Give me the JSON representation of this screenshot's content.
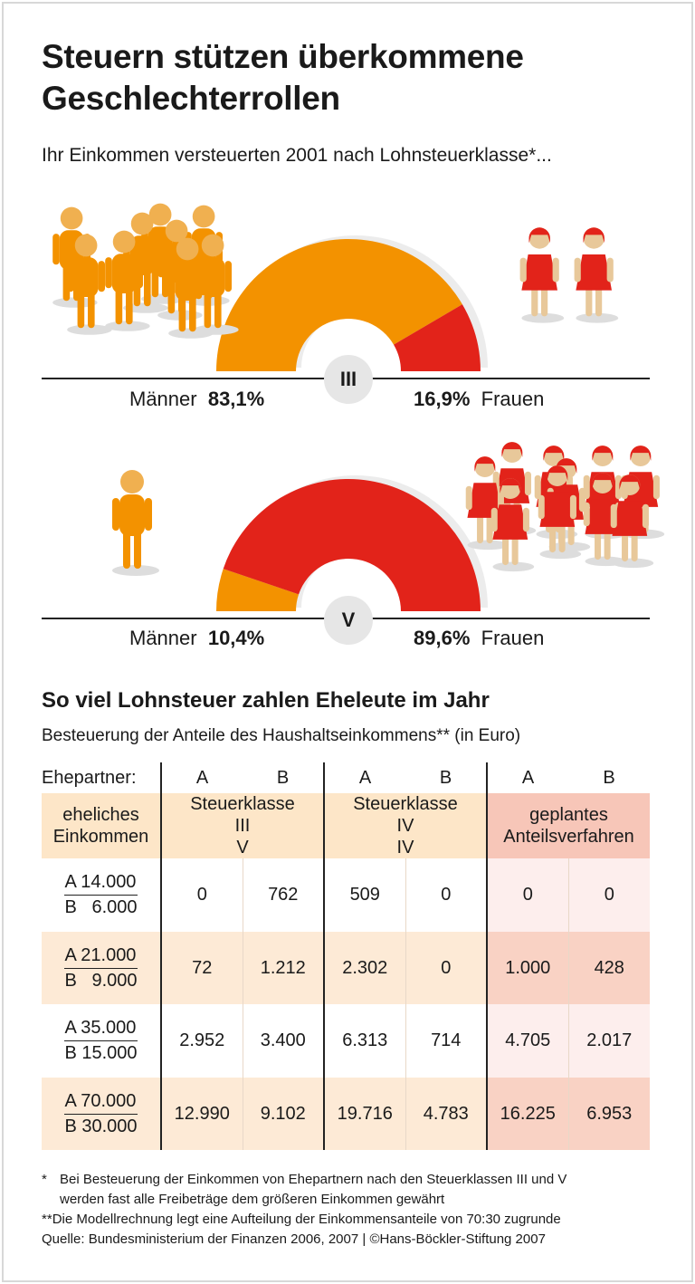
{
  "title": "Steuern stützen überkommene Geschlechterrollen",
  "subtitle": "Ihr Einkommen versteuerten 2001 nach Lohnsteuerklasse*...",
  "colors": {
    "men": "#f39200",
    "women": "#e2231a",
    "badge": "#e6e6e6",
    "peach": "#fde6c8",
    "pink": "#f7c6b8"
  },
  "chart_data": [
    {
      "type": "pie",
      "shape": "half-donut",
      "class_label": "III",
      "series": [
        {
          "name": "Männer",
          "value": 83.1,
          "label": "83,1%"
        },
        {
          "name": "Frauen",
          "value": 16.9,
          "label": "16,9%"
        }
      ]
    },
    {
      "type": "pie",
      "shape": "half-donut",
      "class_label": "V",
      "series": [
        {
          "name": "Männer",
          "value": 10.4,
          "label": "10,4%"
        },
        {
          "name": "Frauen",
          "value": 89.6,
          "label": "89,6%"
        }
      ]
    },
    {
      "type": "table",
      "title": "So viel Lohnsteuer zahlen Eheleute im Jahr",
      "subtitle": "Besteuerung der Anteile des Haushaltseinkommens** (in Euro)",
      "partner_label": "Ehepartner:",
      "partners": [
        "A",
        "B",
        "A",
        "B",
        "A",
        "B"
      ],
      "first_header": [
        "eheliches",
        "Einkommen"
      ],
      "groups": [
        {
          "line1": "Steuerklasse",
          "classes": [
            "III",
            "V"
          ]
        },
        {
          "line1": "Steuerklasse",
          "classes": [
            "IV",
            "IV"
          ]
        },
        {
          "line1": "geplantes",
          "line2": "Anteilsverfahren"
        }
      ],
      "rows": [
        {
          "a": "A 14.000",
          "b": "B   6.000",
          "values": [
            "0",
            "762",
            "509",
            "0",
            "0",
            "0"
          ]
        },
        {
          "a": "A 21.000",
          "b": "B   9.000",
          "values": [
            "72",
            "1.212",
            "2.302",
            "0",
            "1.000",
            "428"
          ]
        },
        {
          "a": "A 35.000",
          "b": "B 15.000",
          "values": [
            "2.952",
            "3.400",
            "6.313",
            "714",
            "4.705",
            "2.017"
          ]
        },
        {
          "a": "A 70.000",
          "b": "B 30.000",
          "values": [
            "12.990",
            "9.102",
            "19.716",
            "4.783",
            "16.225",
            "6.953"
          ]
        }
      ]
    }
  ],
  "footnotes": {
    "f1_mark": "*",
    "f1_line1": "Bei Besteuerung der Einkommen von Ehepartnern nach den Steuerklassen III und V",
    "f1_line2": "werden fast alle Freibeträge dem größeren Einkommen gewährt",
    "f2_mark": "**",
    "f2": "Die Modellrechnung legt eine Aufteilung der Einkommensanteile von 70:30 zugrunde",
    "source": "Quelle: Bundesministerium der Finanzen 2006, 2007 | ©Hans-Böckler-Stiftung 2007"
  }
}
